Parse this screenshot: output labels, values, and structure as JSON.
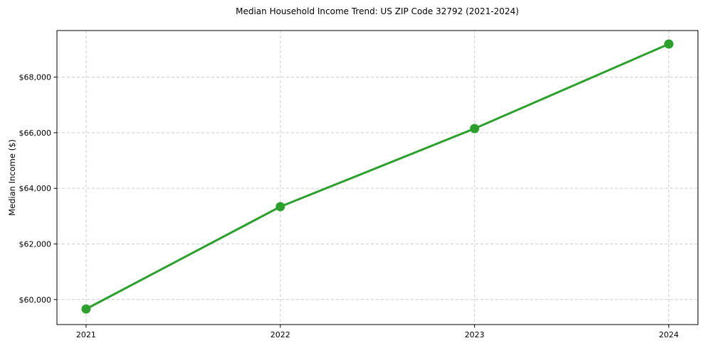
{
  "figure": {
    "title": "Median Household Income Trend: US ZIP Code 32792 (2021-2024)",
    "ylabel": "Median Income ($)"
  },
  "chart_data": {
    "type": "line",
    "title": "Median Household Income Trend: US ZIP Code 32792 (2021-2024)",
    "xlabel": "",
    "ylabel": "Median Income ($)",
    "x": [
      2021,
      2022,
      2023,
      2024
    ],
    "x_tick_labels": [
      "2021",
      "2022",
      "2023",
      "2024"
    ],
    "series": [
      {
        "name": "Median Household Income",
        "values": [
          59660,
          63340,
          66150,
          69190
        ]
      }
    ],
    "y_ticks": [
      60000,
      62000,
      64000,
      66000,
      68000
    ],
    "y_tick_labels": [
      "$60,000",
      "$62,000",
      "$64,000",
      "$66,000",
      "$68,000"
    ],
    "xlim": [
      2020.85,
      2024.15
    ],
    "ylim": [
      59100,
      69675
    ],
    "grid": true,
    "grid_style": "dashed",
    "legend_position": "none",
    "colors": {
      "line": "#2ca02c",
      "marker": "#2ca02c",
      "grid": "#cccccc",
      "axis": "#000000",
      "text": "#000000",
      "background": "#ffffff"
    },
    "line_width": 3,
    "marker": "circle",
    "marker_radius": 6.5
  }
}
